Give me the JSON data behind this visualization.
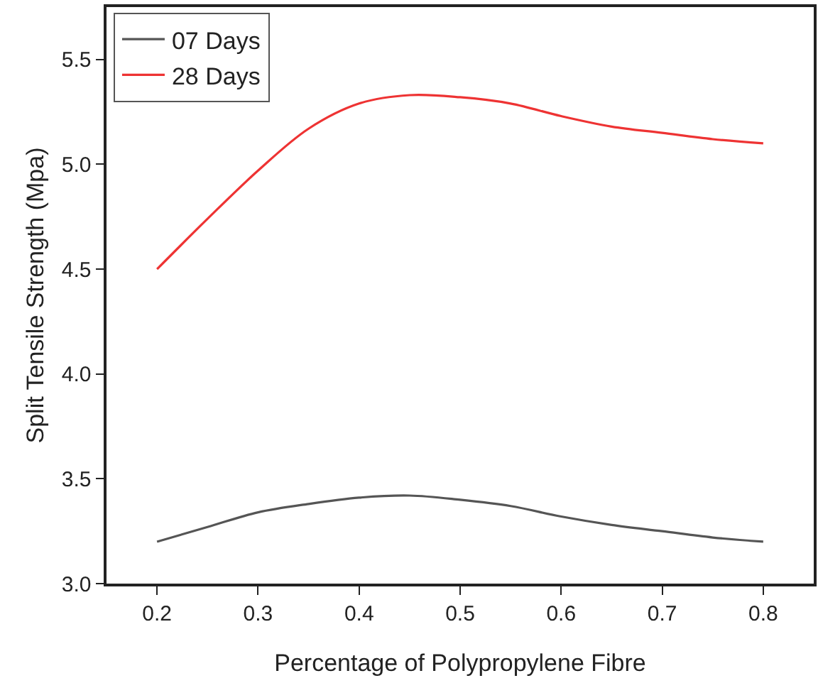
{
  "chart_data": {
    "type": "line",
    "xlabel": "Percentage of Polypropylene Fibre",
    "ylabel": "Split Tensile Strength (Mpa)",
    "x": [
      0.2,
      0.25,
      0.3,
      0.35,
      0.4,
      0.45,
      0.5,
      0.55,
      0.6,
      0.65,
      0.7,
      0.75,
      0.8
    ],
    "series": [
      {
        "name": "07 Days",
        "color": "#555555",
        "values": [
          3.2,
          3.27,
          3.34,
          3.38,
          3.41,
          3.42,
          3.4,
          3.37,
          3.32,
          3.28,
          3.25,
          3.22,
          3.2
        ]
      },
      {
        "name": "28 Days",
        "color": "#ee3333",
        "values": [
          4.5,
          4.74,
          4.97,
          5.17,
          5.29,
          5.33,
          5.32,
          5.29,
          5.23,
          5.18,
          5.15,
          5.12,
          5.1
        ]
      }
    ],
    "xlim": [
      0.15,
      0.85
    ],
    "xticks": [
      0.2,
      0.3,
      0.4,
      0.5,
      0.6,
      0.7,
      0.8
    ],
    "ylim": [
      3.0,
      5.75
    ],
    "yticks": [
      {
        "value": 3,
        "label": "3.0"
      },
      3.5,
      {
        "value": 4,
        "label": "4.0"
      },
      4.5,
      {
        "value": 5,
        "label": "5.0"
      },
      5.5
    ],
    "legend": "top left",
    "grid": false,
    "marker": "none",
    "line_style": "solid"
  }
}
